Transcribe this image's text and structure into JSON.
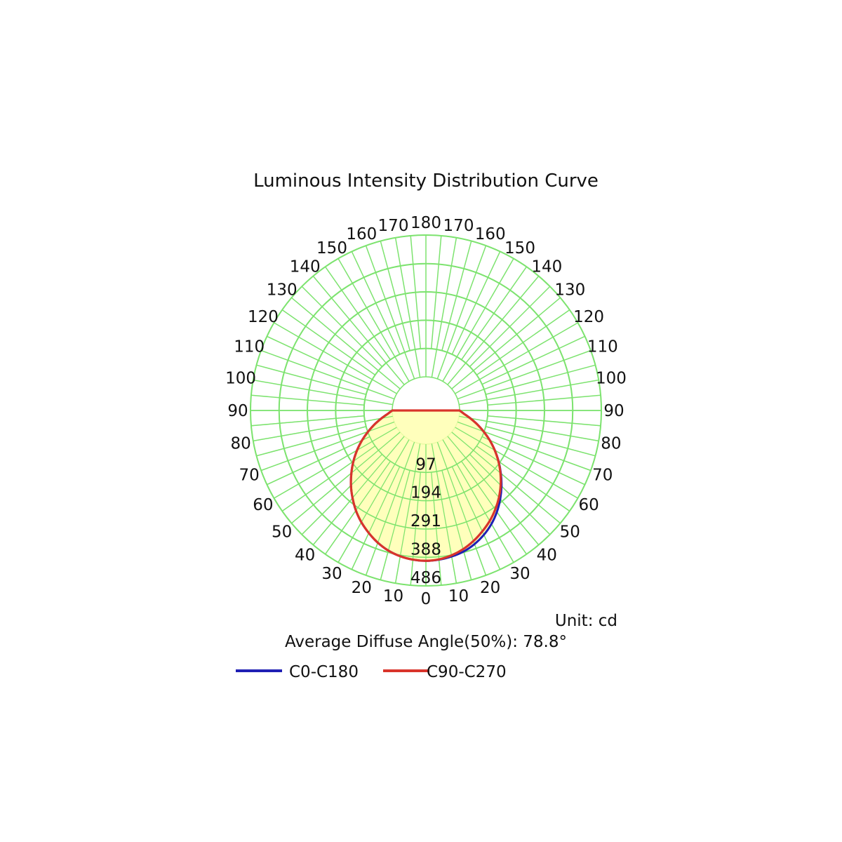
{
  "chart_data": {
    "type": "polar",
    "title": "Luminous Intensity Distribution Curve",
    "unit_label": "Unit: cd",
    "diffuse_angle_label": "Average Diffuse Angle(50%): 78.8°",
    "rmax": 486,
    "ring_values": [
      "97",
      "194",
      "291",
      "388",
      "486"
    ],
    "angle_ticks_left": [
      "0",
      "10",
      "20",
      "30",
      "40",
      "50",
      "60",
      "70",
      "80",
      "90",
      "100",
      "110",
      "120",
      "130",
      "140",
      "150",
      "160",
      "170",
      "180"
    ],
    "angle_ticks_right": [
      "10",
      "20",
      "30",
      "40",
      "50",
      "60",
      "70",
      "80",
      "90",
      "100",
      "110",
      "120",
      "130",
      "140",
      "150",
      "160",
      "170"
    ],
    "grid_color": "#7de36f",
    "fill_color": "#ffffb0",
    "grid": true,
    "legend_position": "bottom",
    "series": [
      {
        "name": "C0-C180",
        "color": "#1f1fb4",
        "angles": [
          0,
          5,
          10,
          15,
          20,
          25,
          30,
          35,
          40,
          45,
          50,
          55,
          60,
          65,
          70,
          75,
          80,
          85,
          90
        ],
        "left": [
          400,
          398,
          392,
          382,
          367,
          348,
          327,
          303,
          276,
          248,
          218,
          188,
          157,
          126,
          95,
          66,
          39,
          16,
          0
        ],
        "right": [
          400,
          398,
          393,
          385,
          372,
          355,
          334,
          309,
          281,
          251,
          220,
          189,
          157,
          126,
          95,
          66,
          39,
          16,
          0
        ]
      },
      {
        "name": "C90-C270",
        "color": "#d9342b",
        "angles": [
          0,
          5,
          10,
          15,
          20,
          25,
          30,
          35,
          40,
          45,
          50,
          55,
          60,
          65,
          70,
          75,
          80,
          85,
          90
        ],
        "left": [
          400,
          398,
          392,
          382,
          367,
          348,
          327,
          303,
          276,
          248,
          218,
          188,
          157,
          126,
          95,
          66,
          39,
          16,
          0
        ],
        "right": [
          400,
          397,
          389,
          377,
          361,
          342,
          322,
          299,
          274,
          247,
          218,
          188,
          157,
          126,
          95,
          66,
          39,
          16,
          0
        ]
      }
    ]
  }
}
